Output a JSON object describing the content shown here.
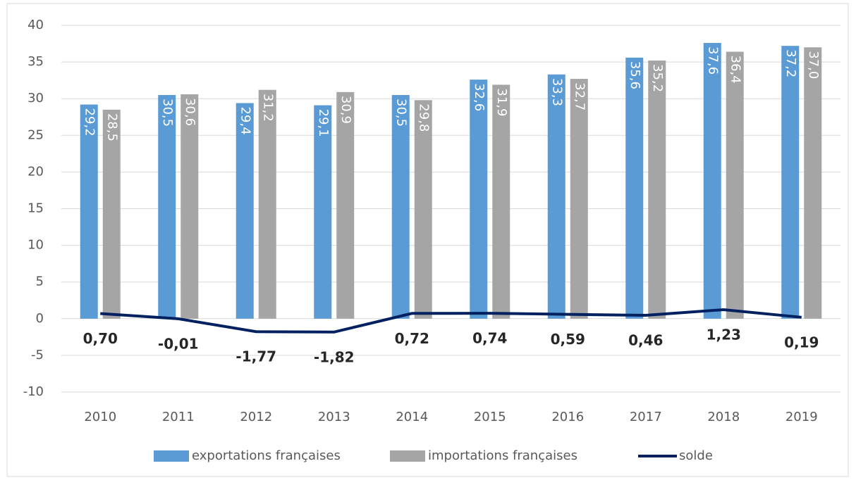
{
  "chart_data": {
    "type": "bar",
    "categories": [
      "2010",
      "2011",
      "2012",
      "2013",
      "2014",
      "2015",
      "2016",
      "2017",
      "2018",
      "2019"
    ],
    "series": [
      {
        "name": "exportations françaises",
        "kind": "bar",
        "color": "#5b9bd5",
        "values": [
          29.2,
          30.5,
          29.4,
          29.1,
          30.5,
          32.6,
          33.3,
          35.6,
          37.6,
          37.2
        ],
        "value_labels": [
          "29,2",
          "30,5",
          "29,4",
          "29,1",
          "30,5",
          "32,6",
          "33,3",
          "35,6",
          "37,6",
          "37,2"
        ]
      },
      {
        "name": "importations françaises",
        "kind": "bar",
        "color": "#a5a5a5",
        "values": [
          28.5,
          30.6,
          31.2,
          30.9,
          29.8,
          31.9,
          32.7,
          35.2,
          36.4,
          37.0
        ],
        "value_labels": [
          "28,5",
          "30,6",
          "31,2",
          "30,9",
          "29,8",
          "31,9",
          "32,7",
          "35,2",
          "36,4",
          "37,0"
        ]
      },
      {
        "name": "solde",
        "kind": "line",
        "color": "#002060",
        "values": [
          0.7,
          -0.01,
          -1.77,
          -1.82,
          0.72,
          0.74,
          0.59,
          0.46,
          1.23,
          0.19
        ],
        "value_labels": [
          "0,70",
          "-0,01",
          "-1,77",
          "-1,82",
          "0,72",
          "0,74",
          "0,59",
          "0,46",
          "1,23",
          "0,19"
        ]
      }
    ],
    "ylim": [
      -10,
      40
    ],
    "yticks": [
      -10,
      -5,
      0,
      5,
      10,
      15,
      20,
      25,
      30,
      35,
      40
    ],
    "grid": true,
    "legend": "bottom"
  }
}
